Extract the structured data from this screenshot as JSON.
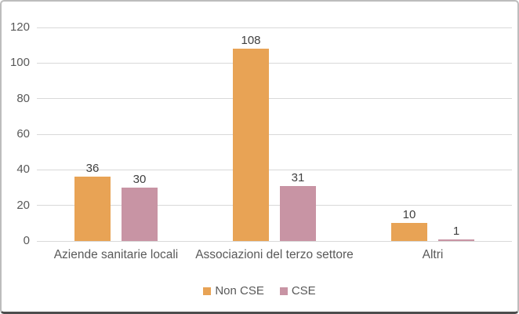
{
  "chart_data": {
    "type": "bar",
    "categories": [
      "Aziende sanitarie locali",
      "Associazioni del terzo settore",
      "Altri"
    ],
    "series": [
      {
        "name": "Non CSE",
        "color": "#E8A355",
        "values": [
          36,
          108,
          10
        ]
      },
      {
        "name": "CSE",
        "color": "#C894A4",
        "values": [
          30,
          31,
          1
        ]
      }
    ],
    "title": "",
    "xlabel": "",
    "ylabel": "",
    "ylim": [
      0,
      120
    ],
    "yticks": [
      0,
      20,
      40,
      60,
      80,
      100,
      120
    ],
    "grid": true,
    "data_labels": true,
    "legend_position": "bottom"
  },
  "colors": {
    "gridline": "#D9D9D9",
    "axis_text": "#595959",
    "data_label_text": "#404040",
    "frame_border": "#BDBDBD",
    "frame_bottom_border": "#4D4D4D",
    "background": "#FFFFFF"
  }
}
